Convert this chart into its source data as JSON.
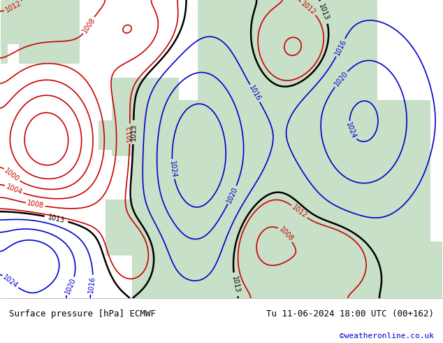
{
  "title_left": "Surface pressure [hPa] ECMWF",
  "title_right": "Tu 11-06-2024 18:00 UTC (00+162)",
  "credit": "©weatheronline.co.uk",
  "credit_color": "#0000cc",
  "bg_color": "#e8e8e8",
  "map_bg": "#c8dfc8",
  "sea_color": "#d0e8f0",
  "land_color": "#c8dfc8",
  "bottom_bar_color": "#e0e0e0",
  "text_color": "#000000",
  "contour_colors": {
    "below_1013": "#cc0000",
    "at_1013": "#000000",
    "above_1013": "#0000cc"
  },
  "figsize": [
    6.34,
    4.9
  ],
  "dpi": 100
}
